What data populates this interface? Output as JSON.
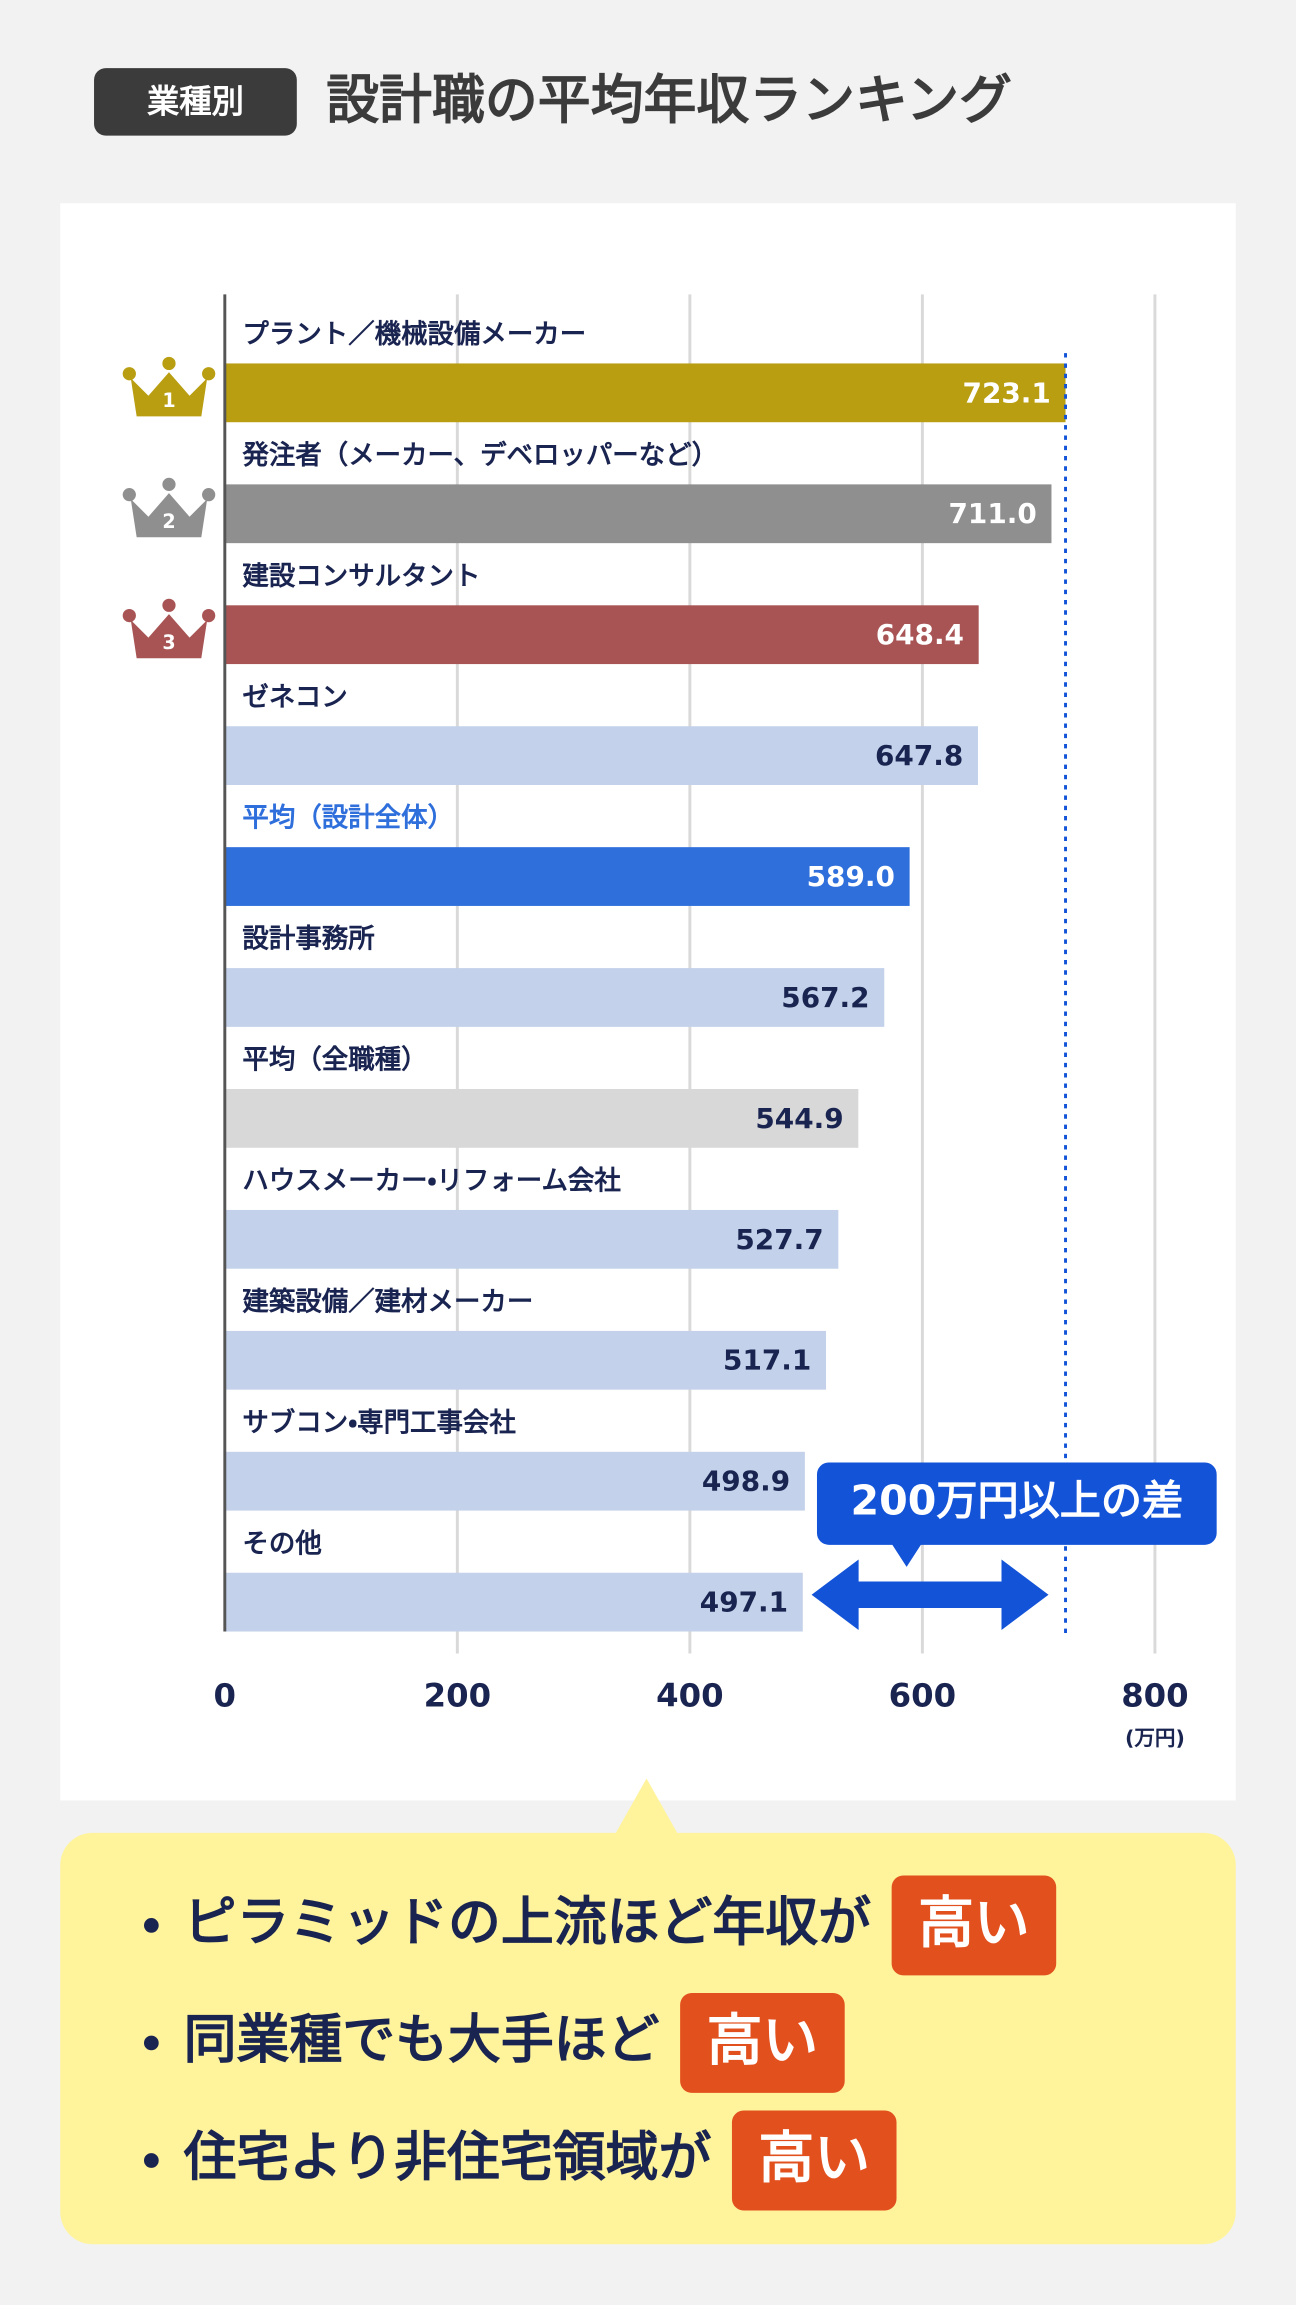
{
  "header": {
    "badge": "業種別",
    "title": "設計職の平均年収ランキング"
  },
  "chart_data": {
    "type": "bar",
    "orientation": "horizontal",
    "categories": [
      "プラント／機械設備メーカー",
      "発注者（メーカー、デベロッパーなど）",
      "建設コンサルタント",
      "ゼネコン",
      "平均（設計全体）",
      "設計事務所",
      "平均（全職種）",
      "ハウスメーカー・リフォーム会社",
      "建築設備／建材メーカー",
      "サブコン・専門工事会社",
      "その他"
    ],
    "values": [
      723.1,
      711.0,
      648.4,
      647.8,
      589.0,
      567.2,
      544.9,
      527.7,
      517.1,
      498.9,
      497.1
    ],
    "value_labels": [
      "723.1",
      "711.0",
      "648.4",
      "647.8",
      "589.0",
      "567.2",
      "544.9",
      "527.7",
      "517.1",
      "498.9",
      "497.1"
    ],
    "colors": [
      "#b89e10",
      "#8f8f8f",
      "#a85454",
      "#c3d1ea",
      "#2f6fdc",
      "#c3d1ea",
      "#d8d8d8",
      "#c3d1ea",
      "#c3d1ea",
      "#c3d1ea",
      "#c3d1ea"
    ],
    "value_label_colors": [
      "#ffffff",
      "#ffffff",
      "#ffffff",
      "#1a2450",
      "#ffffff",
      "#1a2450",
      "#1a2450",
      "#1a2450",
      "#1a2450",
      "#1a2450",
      "#1a2450"
    ],
    "category_colors": [
      "#1a2450",
      "#1a2450",
      "#1a2450",
      "#1a2450",
      "#2f6fdc",
      "#1a2450",
      "#1a2450",
      "#1a2450",
      "#1a2450",
      "#1a2450",
      "#1a2450"
    ],
    "rank_labels": [
      "1",
      "2",
      "3"
    ],
    "xlim": [
      0,
      800
    ],
    "xticks": [
      0,
      200,
      400,
      600,
      800
    ],
    "x_unit": "(万円)",
    "grid": true,
    "annotation": "200万円以上の差"
  },
  "notes": [
    {
      "text": "ピラミッドの上流ほど年収が",
      "highlight": "高い"
    },
    {
      "text": "同業種でも大手ほど",
      "highlight": "高い"
    },
    {
      "text": "住宅より非住宅領域が",
      "highlight": "高い"
    }
  ]
}
